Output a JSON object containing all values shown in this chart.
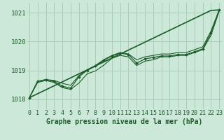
{
  "background_color": "#cce8d8",
  "grid_color": "#aaccb8",
  "line_color": "#1a5c28",
  "title": "Graphe pression niveau de la mer (hPa)",
  "hours": [
    0,
    1,
    2,
    3,
    4,
    5,
    6,
    7,
    8,
    9,
    10,
    11,
    12,
    13,
    14,
    15,
    16,
    17,
    18,
    19,
    20,
    21,
    22,
    23
  ],
  "ylim": [
    1017.65,
    1021.35
  ],
  "yticks": [
    1018,
    1019,
    1020,
    1021
  ],
  "xlim": [
    -0.3,
    23.3
  ],
  "linear": [
    1018.05,
    1018.188,
    1018.326,
    1018.464,
    1018.602,
    1018.74,
    1018.878,
    1019.016,
    1019.154,
    1019.292,
    1019.43,
    1019.568,
    1019.706,
    1019.844,
    1019.982,
    1020.12,
    1020.258,
    1020.396,
    1020.534,
    1020.672,
    1020.81,
    1020.948,
    1021.086,
    1021.1
  ],
  "s_main": [
    1018.05,
    1018.62,
    1018.68,
    1018.62,
    1018.45,
    1018.38,
    1018.78,
    1019.0,
    1019.15,
    1019.35,
    1019.5,
    1019.6,
    1019.55,
    1019.25,
    1019.4,
    1019.45,
    1019.5,
    1019.5,
    1019.55,
    1019.55,
    1019.65,
    1019.75,
    1020.3,
    1021.1
  ],
  "s_upper": [
    1018.05,
    1018.62,
    1018.68,
    1018.65,
    1018.55,
    1018.48,
    1018.82,
    1019.02,
    1019.17,
    1019.37,
    1019.52,
    1019.62,
    1019.57,
    1019.37,
    1019.47,
    1019.52,
    1019.57,
    1019.57,
    1019.62,
    1019.62,
    1019.72,
    1019.82,
    1020.37,
    1021.12
  ],
  "s_lower": [
    1018.05,
    1018.58,
    1018.65,
    1018.58,
    1018.4,
    1018.34,
    1018.56,
    1018.88,
    1018.98,
    1019.18,
    1019.42,
    1019.52,
    1019.47,
    1019.17,
    1019.32,
    1019.37,
    1019.47,
    1019.47,
    1019.52,
    1019.52,
    1019.62,
    1019.72,
    1020.22,
    1021.07
  ],
  "title_fontsize": 7,
  "tick_fontsize": 6.5
}
